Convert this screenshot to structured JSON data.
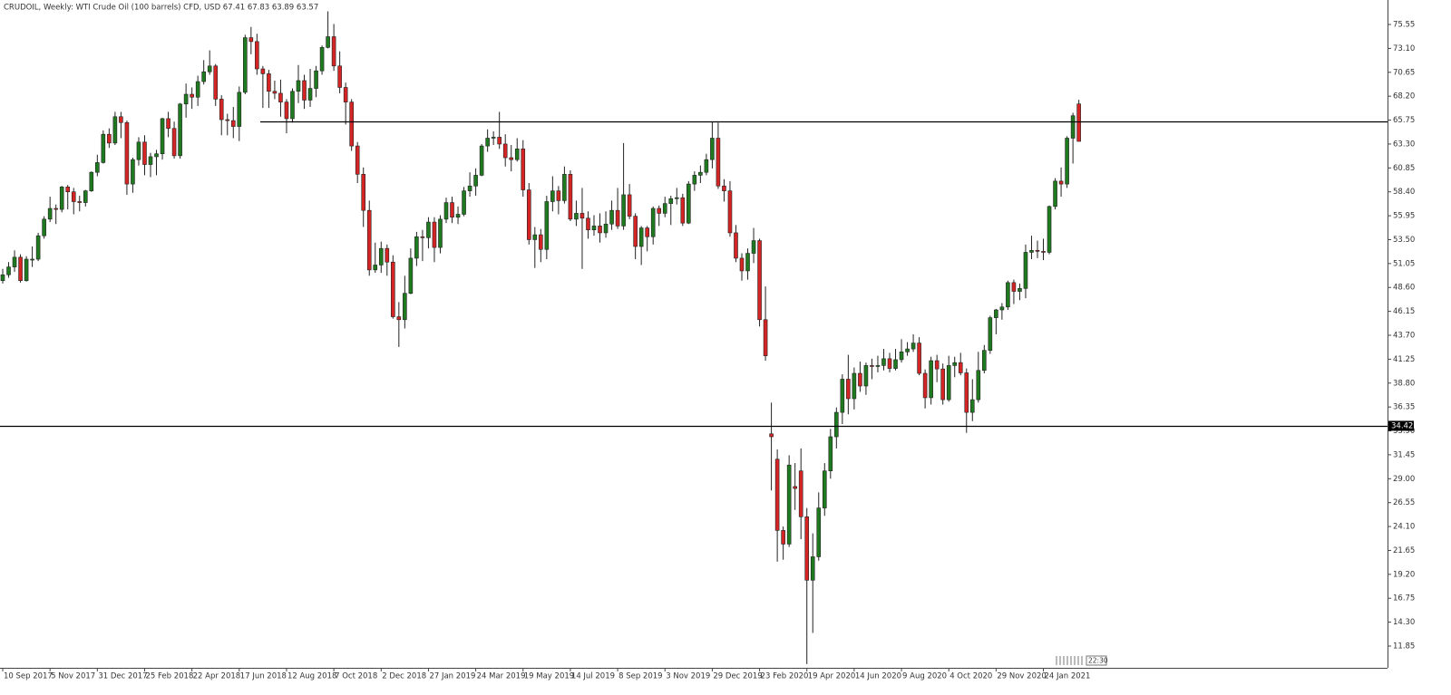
{
  "chart_data": {
    "type": "candlestick",
    "title": "CRUDOIL, Weekly:  WTI Crude Oil (100 barrels) CFD, USD  67.41 67.83 63.89 63.57",
    "up_color": "#1f7a1f",
    "down_color": "#d42424",
    "ylim": [
      9.62,
      78.06
    ],
    "yticks": [
      75.55,
      {
        "value": 73.1,
        "label": "73.10"
      },
      70.65,
      {
        "value": 68.2,
        "label": "68.20"
      },
      65.75,
      {
        "value": 63.3,
        "label": "63.30"
      },
      60.85,
      {
        "value": 58.4,
        "label": "58.40"
      },
      55.95,
      {
        "value": 53.5,
        "label": "53.50"
      },
      51.05,
      {
        "value": 48.6,
        "label": "48.60"
      },
      46.15,
      {
        "value": 43.7,
        "label": "43.70"
      },
      41.25,
      {
        "value": 38.8,
        "label": "38.80"
      },
      36.35,
      {
        "value": 33.9,
        "label": "33.90"
      },
      31.45,
      {
        "value": 29,
        "label": "29.00"
      },
      26.55,
      {
        "value": 24.1,
        "label": "24.10"
      },
      21.65,
      {
        "value": 19.2,
        "label": "19.20"
      },
      16.75,
      {
        "value": 14.3,
        "label": "14.30"
      },
      11.85
    ],
    "hlines": [
      65.62,
      34.42
    ],
    "countdown": "22:30",
    "categories": [
      "10 Sep 2017",
      null,
      null,
      null,
      null,
      null,
      null,
      null,
      "5 Nov 2017",
      null,
      null,
      null,
      null,
      null,
      null,
      null,
      "31 Dec 2017",
      null,
      null,
      null,
      null,
      null,
      null,
      null,
      "25 Feb 2018",
      null,
      null,
      null,
      null,
      null,
      null,
      null,
      "22 Apr 2018",
      null,
      null,
      null,
      null,
      null,
      null,
      null,
      "17 Jun 2018",
      null,
      null,
      null,
      null,
      null,
      null,
      null,
      "12 Aug 2018",
      null,
      null,
      null,
      null,
      null,
      null,
      null,
      "7 Oct 2018",
      null,
      null,
      null,
      null,
      null,
      null,
      null,
      "2 Dec 2018",
      null,
      null,
      null,
      null,
      null,
      null,
      null,
      "27 Jan 2019",
      null,
      null,
      null,
      null,
      null,
      null,
      null,
      "24 Mar 2019",
      null,
      null,
      null,
      null,
      null,
      null,
      null,
      "19 May 2019",
      null,
      null,
      null,
      null,
      null,
      null,
      null,
      "14 Jul 2019",
      null,
      null,
      null,
      null,
      null,
      null,
      null,
      "8 Sep 2019",
      null,
      null,
      null,
      null,
      null,
      null,
      null,
      "3 Nov 2019",
      null,
      null,
      null,
      null,
      null,
      null,
      null,
      "29 Dec 2019",
      null,
      null,
      null,
      null,
      null,
      null,
      null,
      "23 Feb 2020",
      null,
      null,
      null,
      null,
      null,
      null,
      null,
      "19 Apr 2020",
      null,
      null,
      null,
      null,
      null,
      null,
      null,
      "14 Jun 2020",
      null,
      null,
      null,
      null,
      null,
      null,
      null,
      "9 Aug 2020",
      null,
      null,
      null,
      null,
      null,
      null,
      null,
      "4 Oct 2020",
      null,
      null,
      null,
      null,
      null,
      null,
      null,
      "29 Nov 2020",
      null,
      null,
      null,
      null,
      null,
      null,
      null,
      "24 Jan 2021",
      null,
      null,
      null,
      null,
      null,
      null
    ],
    "ohlc": [
      [
        49.3,
        50.5,
        49.0,
        49.9
      ],
      [
        49.9,
        51.2,
        49.6,
        50.7
      ],
      [
        50.7,
        52.4,
        50.2,
        51.7
      ],
      [
        51.7,
        52.0,
        49.1,
        49.3
      ],
      [
        49.3,
        51.8,
        49.2,
        51.5
      ],
      [
        51.5,
        52.8,
        50.7,
        51.5
      ],
      [
        51.5,
        54.2,
        51.3,
        53.9
      ],
      [
        53.9,
        55.9,
        53.6,
        55.6
      ],
      [
        55.6,
        57.9,
        55.3,
        56.7
      ],
      [
        56.7,
        57.1,
        55.1,
        56.6
      ],
      [
        56.6,
        59.0,
        56.3,
        58.9
      ],
      [
        58.9,
        59.1,
        56.6,
        58.4
      ],
      [
        58.4,
        58.8,
        56.1,
        57.4
      ],
      [
        57.4,
        58.0,
        56.4,
        57.3
      ],
      [
        57.3,
        58.6,
        56.9,
        58.5
      ],
      [
        58.5,
        60.5,
        58.4,
        60.4
      ],
      [
        60.4,
        62.2,
        60.0,
        61.4
      ],
      [
        61.4,
        64.7,
        61.3,
        64.3
      ],
      [
        64.3,
        64.9,
        62.9,
        63.4
      ],
      [
        63.4,
        66.6,
        63.2,
        66.1
      ],
      [
        66.1,
        66.6,
        63.9,
        65.5
      ],
      [
        65.5,
        65.7,
        58.1,
        59.2
      ],
      [
        59.2,
        61.9,
        58.3,
        61.7
      ],
      [
        61.7,
        64.0,
        61.1,
        63.5
      ],
      [
        63.5,
        64.2,
        60.1,
        61.2
      ],
      [
        61.2,
        62.4,
        59.9,
        62.0
      ],
      [
        62.0,
        62.7,
        60.1,
        62.3
      ],
      [
        62.3,
        66.0,
        61.7,
        65.9
      ],
      [
        65.9,
        66.6,
        64.0,
        64.9
      ],
      [
        64.9,
        65.6,
        61.8,
        62.1
      ],
      [
        62.1,
        67.5,
        61.8,
        67.4
      ],
      [
        67.4,
        69.5,
        66.0,
        68.4
      ],
      [
        68.4,
        69.1,
        66.9,
        68.1
      ],
      [
        68.1,
        70.3,
        67.2,
        69.7
      ],
      [
        69.7,
        71.9,
        69.4,
        70.7
      ],
      [
        70.7,
        72.9,
        70.4,
        71.3
      ],
      [
        71.3,
        71.5,
        67.2,
        67.9
      ],
      [
        67.9,
        68.3,
        64.2,
        65.8
      ],
      [
        65.8,
        66.4,
        64.2,
        65.7
      ],
      [
        65.7,
        67.1,
        63.9,
        65.1
      ],
      [
        65.1,
        69.2,
        63.6,
        68.6
      ],
      [
        68.6,
        74.5,
        68.4,
        74.2
      ],
      [
        74.2,
        75.3,
        72.5,
        73.8
      ],
      [
        73.8,
        74.6,
        70.4,
        71.0
      ],
      [
        71.0,
        71.3,
        67.0,
        70.5
      ],
      [
        70.5,
        70.9,
        67.0,
        68.7
      ],
      [
        68.7,
        69.8,
        67.9,
        68.5
      ],
      [
        68.5,
        69.9,
        66.1,
        67.6
      ],
      [
        67.6,
        67.9,
        64.4,
        65.9
      ],
      [
        65.9,
        69.0,
        65.5,
        68.7
      ],
      [
        68.7,
        71.4,
        67.5,
        69.8
      ],
      [
        69.8,
        70.4,
        66.9,
        67.8
      ],
      [
        67.8,
        71.0,
        67.1,
        69.0
      ],
      [
        69.0,
        71.3,
        68.1,
        70.8
      ],
      [
        70.8,
        73.4,
        70.4,
        73.2
      ],
      [
        73.2,
        76.9,
        73.1,
        74.3
      ],
      [
        74.3,
        75.6,
        70.8,
        71.3
      ],
      [
        71.3,
        72.8,
        68.5,
        69.1
      ],
      [
        69.1,
        69.6,
        65.3,
        67.6
      ],
      [
        67.6,
        67.9,
        62.6,
        63.1
      ],
      [
        63.1,
        63.5,
        59.3,
        60.2
      ],
      [
        60.2,
        60.9,
        54.8,
        56.5
      ],
      [
        56.5,
        57.5,
        49.8,
        50.4
      ],
      [
        50.4,
        53.2,
        50.1,
        50.9
      ],
      [
        50.9,
        53.3,
        50.1,
        52.6
      ],
      [
        52.6,
        53.0,
        49.8,
        51.2
      ],
      [
        51.2,
        51.9,
        45.4,
        45.6
      ],
      [
        45.6,
        47.1,
        42.5,
        45.3
      ],
      [
        45.3,
        49.8,
        44.4,
        48.0
      ],
      [
        48.0,
        52.6,
        47.9,
        51.6
      ],
      [
        51.6,
        54.3,
        50.8,
        53.8
      ],
      [
        53.8,
        54.5,
        51.3,
        53.7
      ],
      [
        53.7,
        55.8,
        52.6,
        55.3
      ],
      [
        55.3,
        55.8,
        51.2,
        52.7
      ],
      [
        52.7,
        56.0,
        52.1,
        55.6
      ],
      [
        55.6,
        57.8,
        55.2,
        57.3
      ],
      [
        57.3,
        57.9,
        55.2,
        55.8
      ],
      [
        55.8,
        56.9,
        55.1,
        56.1
      ],
      [
        56.1,
        58.9,
        55.9,
        58.5
      ],
      [
        58.5,
        60.4,
        57.9,
        59.0
      ],
      [
        59.0,
        60.8,
        58.0,
        60.1
      ],
      [
        60.1,
        63.3,
        60.0,
        63.1
      ],
      [
        63.1,
        64.8,
        62.5,
        63.9
      ],
      [
        63.9,
        64.6,
        63.2,
        64.0
      ],
      [
        64.0,
        66.6,
        62.8,
        63.3
      ],
      [
        63.3,
        64.3,
        61.0,
        61.9
      ],
      [
        61.9,
        63.2,
        60.5,
        61.7
      ],
      [
        61.7,
        63.9,
        61.5,
        62.8
      ],
      [
        62.8,
        63.7,
        57.9,
        58.6
      ],
      [
        58.6,
        59.3,
        53.0,
        53.5
      ],
      [
        53.5,
        54.8,
        50.6,
        54.0
      ],
      [
        54.0,
        54.6,
        51.2,
        52.5
      ],
      [
        52.5,
        58.0,
        51.5,
        57.4
      ],
      [
        57.4,
        60.0,
        56.4,
        58.5
      ],
      [
        58.5,
        59.0,
        56.1,
        57.5
      ],
      [
        57.5,
        61.0,
        57.2,
        60.2
      ],
      [
        60.2,
        60.6,
        55.4,
        55.6
      ],
      [
        55.6,
        57.5,
        54.9,
        56.2
      ],
      [
        56.2,
        58.8,
        50.5,
        55.7
      ],
      [
        55.7,
        56.4,
        53.6,
        54.5
      ],
      [
        54.5,
        56.0,
        53.9,
        54.9
      ],
      [
        54.9,
        56.2,
        53.2,
        54.2
      ],
      [
        54.2,
        56.4,
        53.7,
        55.1
      ],
      [
        55.1,
        57.5,
        54.5,
        56.5
      ],
      [
        56.5,
        58.8,
        54.6,
        54.9
      ],
      [
        54.9,
        63.4,
        54.5,
        58.1
      ],
      [
        58.1,
        59.2,
        55.6,
        55.9
      ],
      [
        55.9,
        56.2,
        51.5,
        52.8
      ],
      [
        52.8,
        54.9,
        50.9,
        54.7
      ],
      [
        54.7,
        54.9,
        52.3,
        53.8
      ],
      [
        53.8,
        56.9,
        53.0,
        56.7
      ],
      [
        56.7,
        57.0,
        54.9,
        56.2
      ],
      [
        56.2,
        57.9,
        55.8,
        57.2
      ],
      [
        57.2,
        58.0,
        55.0,
        57.7
      ],
      [
        57.7,
        58.8,
        57.1,
        57.8
      ],
      [
        57.8,
        58.2,
        54.9,
        55.2
      ],
      [
        55.2,
        59.5,
        55.1,
        59.2
      ],
      [
        59.2,
        60.5,
        58.5,
        60.1
      ],
      [
        60.1,
        61.1,
        59.3,
        60.4
      ],
      [
        60.4,
        62.3,
        60.1,
        61.7
      ],
      [
        61.7,
        65.6,
        60.8,
        63.9
      ],
      [
        63.9,
        65.5,
        58.7,
        59.0
      ],
      [
        59.0,
        59.7,
        57.4,
        58.5
      ],
      [
        58.5,
        59.5,
        53.8,
        54.2
      ],
      [
        54.2,
        55.0,
        51.2,
        51.6
      ],
      [
        51.6,
        52.1,
        49.3,
        50.3
      ],
      [
        50.3,
        52.6,
        49.4,
        52.1
      ],
      [
        52.1,
        54.7,
        51.1,
        53.4
      ],
      [
        53.4,
        53.6,
        44.6,
        45.3
      ],
      [
        45.3,
        48.7,
        41.1,
        41.6
      ],
      [
        33.6,
        36.8,
        27.8,
        33.3
      ],
      [
        31.0,
        32.0,
        20.5,
        23.7
      ],
      [
        23.7,
        24.1,
        20.7,
        22.3
      ],
      [
        22.3,
        31.4,
        22.0,
        30.4
      ],
      [
        28.2,
        30.6,
        25.8,
        28.0
      ],
      [
        29.8,
        32.1,
        22.8,
        25.1
      ],
      [
        25.1,
        26.0,
        10.0,
        18.6
      ],
      [
        18.6,
        23.4,
        13.2,
        21.0
      ],
      [
        21.0,
        27.6,
        20.6,
        26.0
      ],
      [
        26.0,
        30.6,
        25.2,
        29.8
      ],
      [
        29.8,
        34.1,
        29.0,
        33.3
      ],
      [
        33.3,
        36.3,
        32.1,
        35.8
      ],
      [
        35.8,
        39.7,
        34.6,
        39.2
      ],
      [
        39.2,
        41.7,
        35.6,
        37.2
      ],
      [
        37.2,
        40.4,
        36.1,
        39.8
      ],
      [
        39.8,
        41.0,
        37.9,
        38.5
      ],
      [
        38.5,
        40.9,
        37.6,
        40.6
      ],
      [
        40.6,
        41.3,
        39.2,
        40.5
      ],
      [
        40.5,
        41.6,
        39.9,
        40.6
      ],
      [
        40.6,
        42.3,
        40.1,
        41.3
      ],
      [
        41.3,
        41.9,
        39.9,
        40.3
      ],
      [
        40.3,
        42.3,
        40.1,
        41.2
      ],
      [
        41.2,
        43.3,
        40.9,
        42.0
      ],
      [
        42.0,
        43.0,
        41.6,
        42.3
      ],
      [
        42.3,
        43.8,
        42.0,
        42.9
      ],
      [
        42.9,
        43.5,
        39.6,
        39.8
      ],
      [
        39.8,
        40.2,
        36.2,
        37.3
      ],
      [
        37.3,
        41.5,
        36.6,
        41.1
      ],
      [
        41.1,
        41.7,
        38.9,
        40.25
      ],
      [
        40.25,
        40.8,
        36.6,
        37.1
      ],
      [
        37.1,
        41.6,
        36.9,
        40.6
      ],
      [
        40.6,
        41.5,
        39.4,
        40.9
      ],
      [
        40.9,
        41.9,
        39.6,
        39.85
      ],
      [
        39.85,
        40.3,
        33.7,
        35.8
      ],
      [
        35.8,
        39.2,
        34.9,
        37.1
      ],
      [
        37.1,
        42.0,
        36.8,
        40.1
      ],
      [
        40.1,
        42.7,
        39.8,
        42.15
      ],
      [
        42.15,
        45.7,
        41.8,
        45.5
      ],
      [
        45.5,
        46.4,
        43.8,
        46.3
      ],
      [
        46.3,
        47.0,
        45.3,
        46.6
      ],
      [
        46.6,
        49.3,
        46.3,
        49.1
      ],
      [
        49.1,
        49.4,
        46.9,
        48.2
      ],
      [
        48.2,
        49.0,
        47.3,
        48.5
      ],
      [
        48.5,
        53.0,
        47.5,
        52.2
      ],
      [
        52.2,
        53.9,
        51.5,
        52.4
      ],
      [
        52.4,
        53.4,
        51.6,
        52.3
      ],
      [
        52.3,
        53.6,
        51.4,
        52.2
      ],
      [
        52.2,
        57.0,
        52.0,
        56.9
      ],
      [
        56.9,
        59.8,
        56.6,
        59.5
      ],
      [
        59.5,
        60.9,
        57.9,
        59.2
      ],
      [
        59.2,
        64.1,
        58.8,
        63.9
      ],
      [
        63.9,
        66.5,
        61.3,
        66.2
      ],
      [
        67.41,
        67.83,
        63.89,
        63.57
      ]
    ]
  }
}
